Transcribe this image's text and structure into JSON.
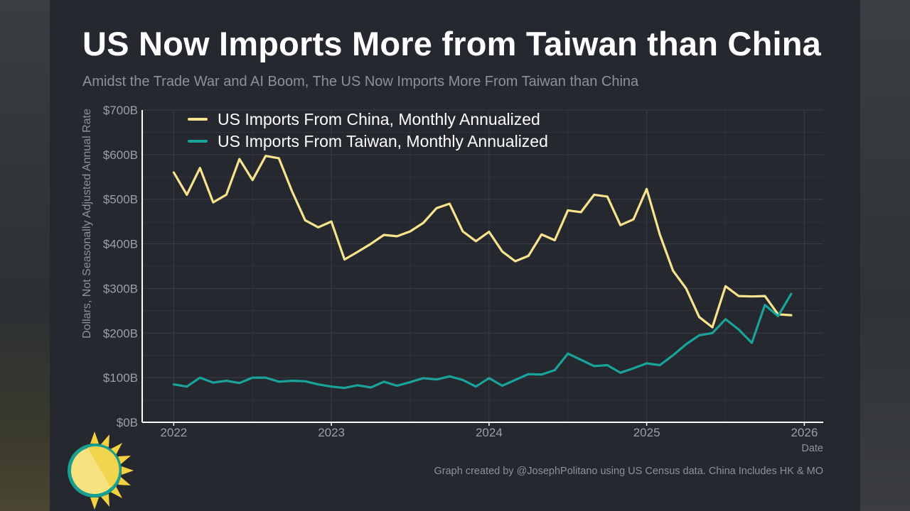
{
  "title": "US Now Imports More from Taiwan than China",
  "subtitle": "Amidst the Trade War and AI Boom, The US Now Imports More From Taiwan than China",
  "caption": "Graph created by @JosephPolitano using US Census data. China Includes HK & MO",
  "colors": {
    "china": "#f8e48f",
    "taiwan": "#19a39a",
    "grid": "#3a3e45",
    "axis": "#ffffff"
  },
  "icon": "sun-logo-icon",
  "chart_data": {
    "type": "line",
    "title": "US Now Imports More from Taiwan than China",
    "xlabel": "Date",
    "ylabel": "Dollars, Not Seasonally Adjusted Annual Rate",
    "xlim": [
      2021.8,
      2026.12
    ],
    "ylim": [
      0,
      700
    ],
    "y_ticks": [
      0,
      100,
      200,
      300,
      400,
      500,
      600,
      700
    ],
    "y_tick_labels": [
      "$0B",
      "$100B",
      "$200B",
      "$300B",
      "$400B",
      "$500B",
      "$600B",
      "$700B"
    ],
    "x_ticks": [
      2022,
      2023,
      2024,
      2025,
      2026
    ],
    "x_tick_labels": [
      "2022",
      "2023",
      "2024",
      "2025",
      "2026"
    ],
    "legend_position": "top-left",
    "series": [
      {
        "name": "US Imports From China, Monthly Annualized",
        "color": "#f8e48f",
        "values": [
          560,
          510,
          570,
          493,
          510,
          590,
          543,
          597,
          592,
          518,
          453,
          437,
          450,
          365,
          382,
          400,
          420,
          417,
          428,
          447,
          480,
          490,
          428,
          406,
          427,
          383,
          361,
          373,
          421,
          408,
          475,
          471,
          510,
          506,
          442,
          455,
          523,
          421,
          340,
          300,
          236,
          213,
          305,
          283,
          282,
          283,
          242,
          240
        ]
      },
      {
        "name": "US Imports From Taiwan, Monthly Annualized",
        "color": "#19a39a",
        "values": [
          85,
          80,
          100,
          89,
          93,
          88,
          100,
          100,
          91,
          93,
          92,
          85,
          80,
          77,
          83,
          78,
          91,
          82,
          90,
          99,
          96,
          103,
          95,
          80,
          99,
          82,
          95,
          108,
          107,
          117,
          154,
          140,
          126,
          128,
          111,
          121,
          132,
          128,
          150,
          175,
          195,
          200,
          231,
          208,
          178,
          263,
          238,
          288
        ]
      }
    ]
  }
}
